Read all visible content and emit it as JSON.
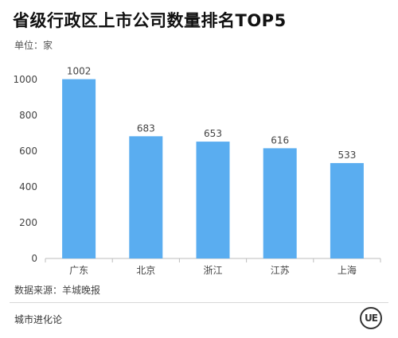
{
  "header": {
    "title": "省级行政区上市公司数量排名TOP5",
    "unit": "单位：家"
  },
  "footer": {
    "source": "数据来源：羊城晚报",
    "brand": "城市进化论",
    "logo_text": "UE"
  },
  "colors": {
    "bar": "#5aadf0",
    "axis": "#bdbdbd",
    "tick": "#444444",
    "label": "#444444"
  },
  "chart_data": {
    "type": "bar",
    "title": "省级行政区上市公司数量排名TOP5",
    "ylabel": "单位：家",
    "categories": [
      "广东",
      "北京",
      "浙江",
      "江苏",
      "上海"
    ],
    "values": [
      1002,
      683,
      653,
      616,
      533
    ],
    "ylim": [
      0,
      1000
    ],
    "yticks": [
      0,
      200,
      400,
      600,
      800,
      1000
    ],
    "grid": false,
    "legend": "none"
  }
}
